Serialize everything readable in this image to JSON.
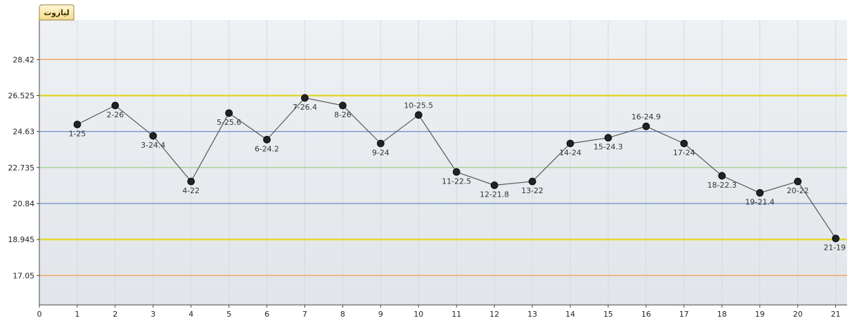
{
  "tab": {
    "label": "لیازوت"
  },
  "chart_data": {
    "type": "line",
    "x": [
      1,
      2,
      3,
      4,
      5,
      6,
      7,
      8,
      9,
      10,
      11,
      12,
      13,
      14,
      15,
      16,
      17,
      18,
      19,
      20,
      21
    ],
    "values": [
      25,
      26,
      24.4,
      22,
      25.6,
      24.2,
      26.4,
      26,
      24,
      25.5,
      22.5,
      21.8,
      22,
      24,
      24.3,
      24.9,
      24,
      22.3,
      21.4,
      22,
      19
    ],
    "point_labels": [
      "1-25",
      "2-26",
      "3-24.4",
      "4-22",
      "5-25.6",
      "6-24.2",
      "7-26.4",
      "8-26",
      "9-24",
      "10-25.5",
      "11-22.5",
      "12-21.8",
      "13-22",
      "14-24",
      "15-24.3",
      "16-24.9",
      "17-24",
      "18-22.3",
      "19-21.4",
      "20-22",
      "21-19"
    ],
    "label_position": [
      "below",
      "below",
      "below",
      "below",
      "below",
      "below",
      "below",
      "below",
      "below",
      "above",
      "below",
      "below",
      "below",
      "below",
      "below",
      "above",
      "below",
      "below",
      "below",
      "below",
      "below"
    ],
    "xlim": [
      0,
      21.3
    ],
    "ylim": [
      15.5,
      30.5
    ],
    "x_ticks": [
      0,
      1,
      2,
      3,
      4,
      5,
      6,
      7,
      8,
      9,
      10,
      11,
      12,
      13,
      14,
      15,
      16,
      17,
      18,
      19,
      20,
      21
    ],
    "y_ticks": [
      {
        "value": 28.42,
        "label": "28.42"
      },
      {
        "value": 26.525,
        "label": "26.525"
      },
      {
        "value": 24.63,
        "label": "24.63"
      },
      {
        "value": 22.735,
        "label": "22.735"
      },
      {
        "value": 20.84,
        "label": "20.84"
      },
      {
        "value": 18.945,
        "label": "18.945"
      },
      {
        "value": 17.05,
        "label": "17.05"
      }
    ],
    "control_lines": [
      {
        "value": 28.42,
        "color": "#f4a460",
        "width": 1.5
      },
      {
        "value": 26.525,
        "color": "#e0d830",
        "width": 2.5
      },
      {
        "value": 24.63,
        "color": "#6a8ec8",
        "width": 1.2
      },
      {
        "value": 22.735,
        "color": "#8fcf7a",
        "width": 1.2
      },
      {
        "value": 20.84,
        "color": "#6a8ec8",
        "width": 1.2
      },
      {
        "value": 18.945,
        "color": "#e0d830",
        "width": 2.5
      },
      {
        "value": 17.05,
        "color": "#f4a460",
        "width": 1.5
      }
    ],
    "grid": true,
    "line_color": "#555555",
    "marker_color": "#222222"
  }
}
